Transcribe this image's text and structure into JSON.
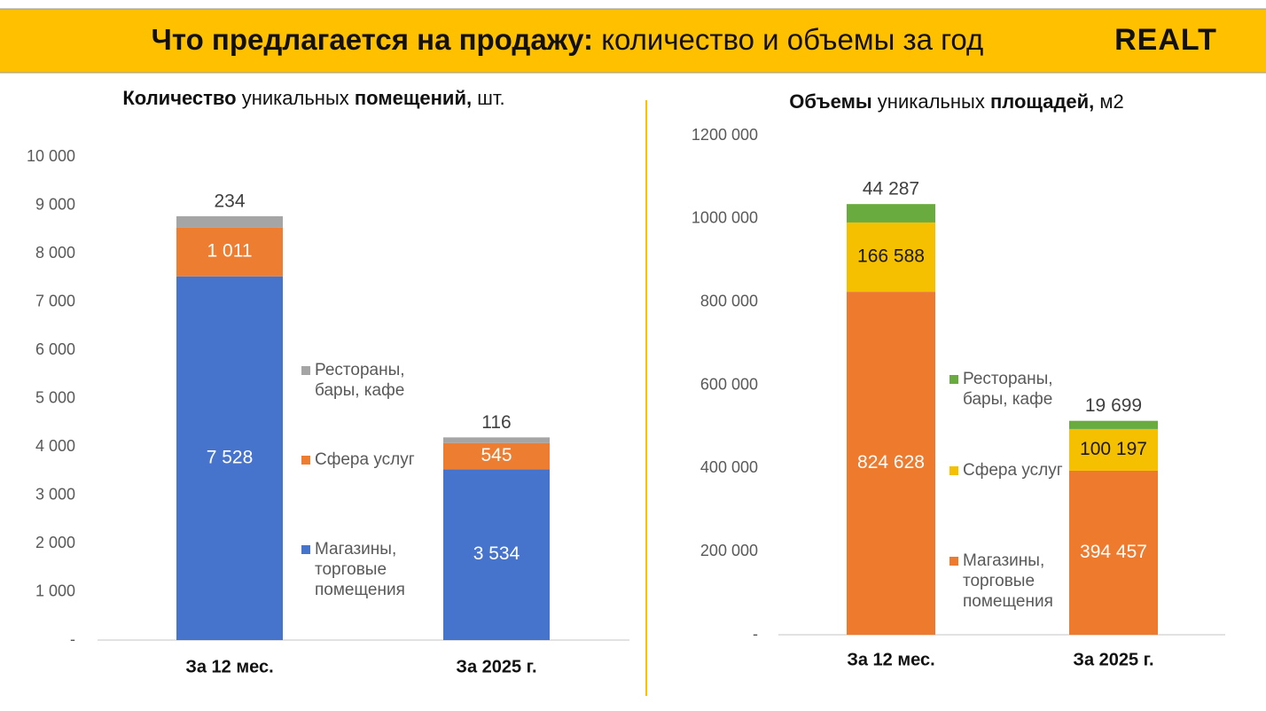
{
  "header": {
    "title_bold": "Что предлагается на продажу:",
    "title_rest": "количество и объемы за год",
    "logo": "REALT"
  },
  "chart_data": [
    {
      "type": "bar",
      "stacked": true,
      "title": [
        "Количество",
        "уникальных",
        "помещений,",
        "шт."
      ],
      "categories": [
        "За 12 мес.",
        "За 2025 г."
      ],
      "series": [
        {
          "name": "Магазины, торговые помещения",
          "color": "#4674cc",
          "label_color": "#ffffff",
          "values": [
            7528,
            3534
          ],
          "value_labels": [
            "7 528",
            "3 534"
          ]
        },
        {
          "name": "Сфера услуг",
          "color": "#ed7d31",
          "label_color": "#ffffff",
          "values": [
            1011,
            545
          ],
          "value_labels": [
            "1 011",
            "545"
          ]
        },
        {
          "name": "Рестораны, бары, кафе",
          "color": "#a5a5a5",
          "label_color": "#404040",
          "values": [
            234,
            116
          ]
        }
      ],
      "ylim": [
        0,
        10000
      ],
      "yticks": [
        {
          "value": 0,
          "label": "-"
        },
        {
          "value": 1000,
          "label": "1 000"
        },
        {
          "value": 2000,
          "label": "2 000"
        },
        {
          "value": 3000,
          "label": "3 000"
        },
        {
          "value": 4000,
          "label": "4 000"
        },
        {
          "value": 5000,
          "label": "5 000"
        },
        {
          "value": 6000,
          "label": "6 000"
        },
        {
          "value": 7000,
          "label": "7 000"
        },
        {
          "value": 8000,
          "label": "8 000"
        },
        {
          "value": 9000,
          "label": "9 000"
        },
        {
          "value": 10000,
          "label": "10 000"
        }
      ]
    },
    {
      "type": "bar",
      "stacked": true,
      "title": [
        "Объемы",
        "уникальных",
        "площадей,",
        "м2"
      ],
      "categories": [
        "За 12 мес.",
        "За 2025 г."
      ],
      "series": [
        {
          "name": "Магазины, торговые помещения",
          "color": "#ee7a2e",
          "label_color": "#ffffff",
          "values": [
            824628,
            394457
          ],
          "value_labels": [
            "824 628",
            "394 457"
          ]
        },
        {
          "name": "Сфера услуг",
          "color": "#f5c000",
          "label_color": "#1a1a1a",
          "values": [
            166588,
            100197
          ],
          "value_labels": [
            "166 588",
            "100 197"
          ]
        },
        {
          "name": "Рестораны, бары, кафе",
          "color": "#6aab3f",
          "label_color": "#404040",
          "values": [
            44287,
            19699
          ],
          "value_labels": [
            "44 287",
            "19 699"
          ]
        }
      ],
      "ylim": [
        0,
        1200000
      ],
      "yticks": [
        {
          "value": 0,
          "label": "-"
        },
        {
          "value": 200000,
          "label": "200 000"
        },
        {
          "value": 400000,
          "label": "400 000"
        },
        {
          "value": 600000,
          "label": "600 000"
        },
        {
          "value": 800000,
          "label": "800 000"
        },
        {
          "value": 1000000,
          "label": "1000 000"
        },
        {
          "value": 1200000,
          "label": "1200 000"
        }
      ]
    }
  ]
}
